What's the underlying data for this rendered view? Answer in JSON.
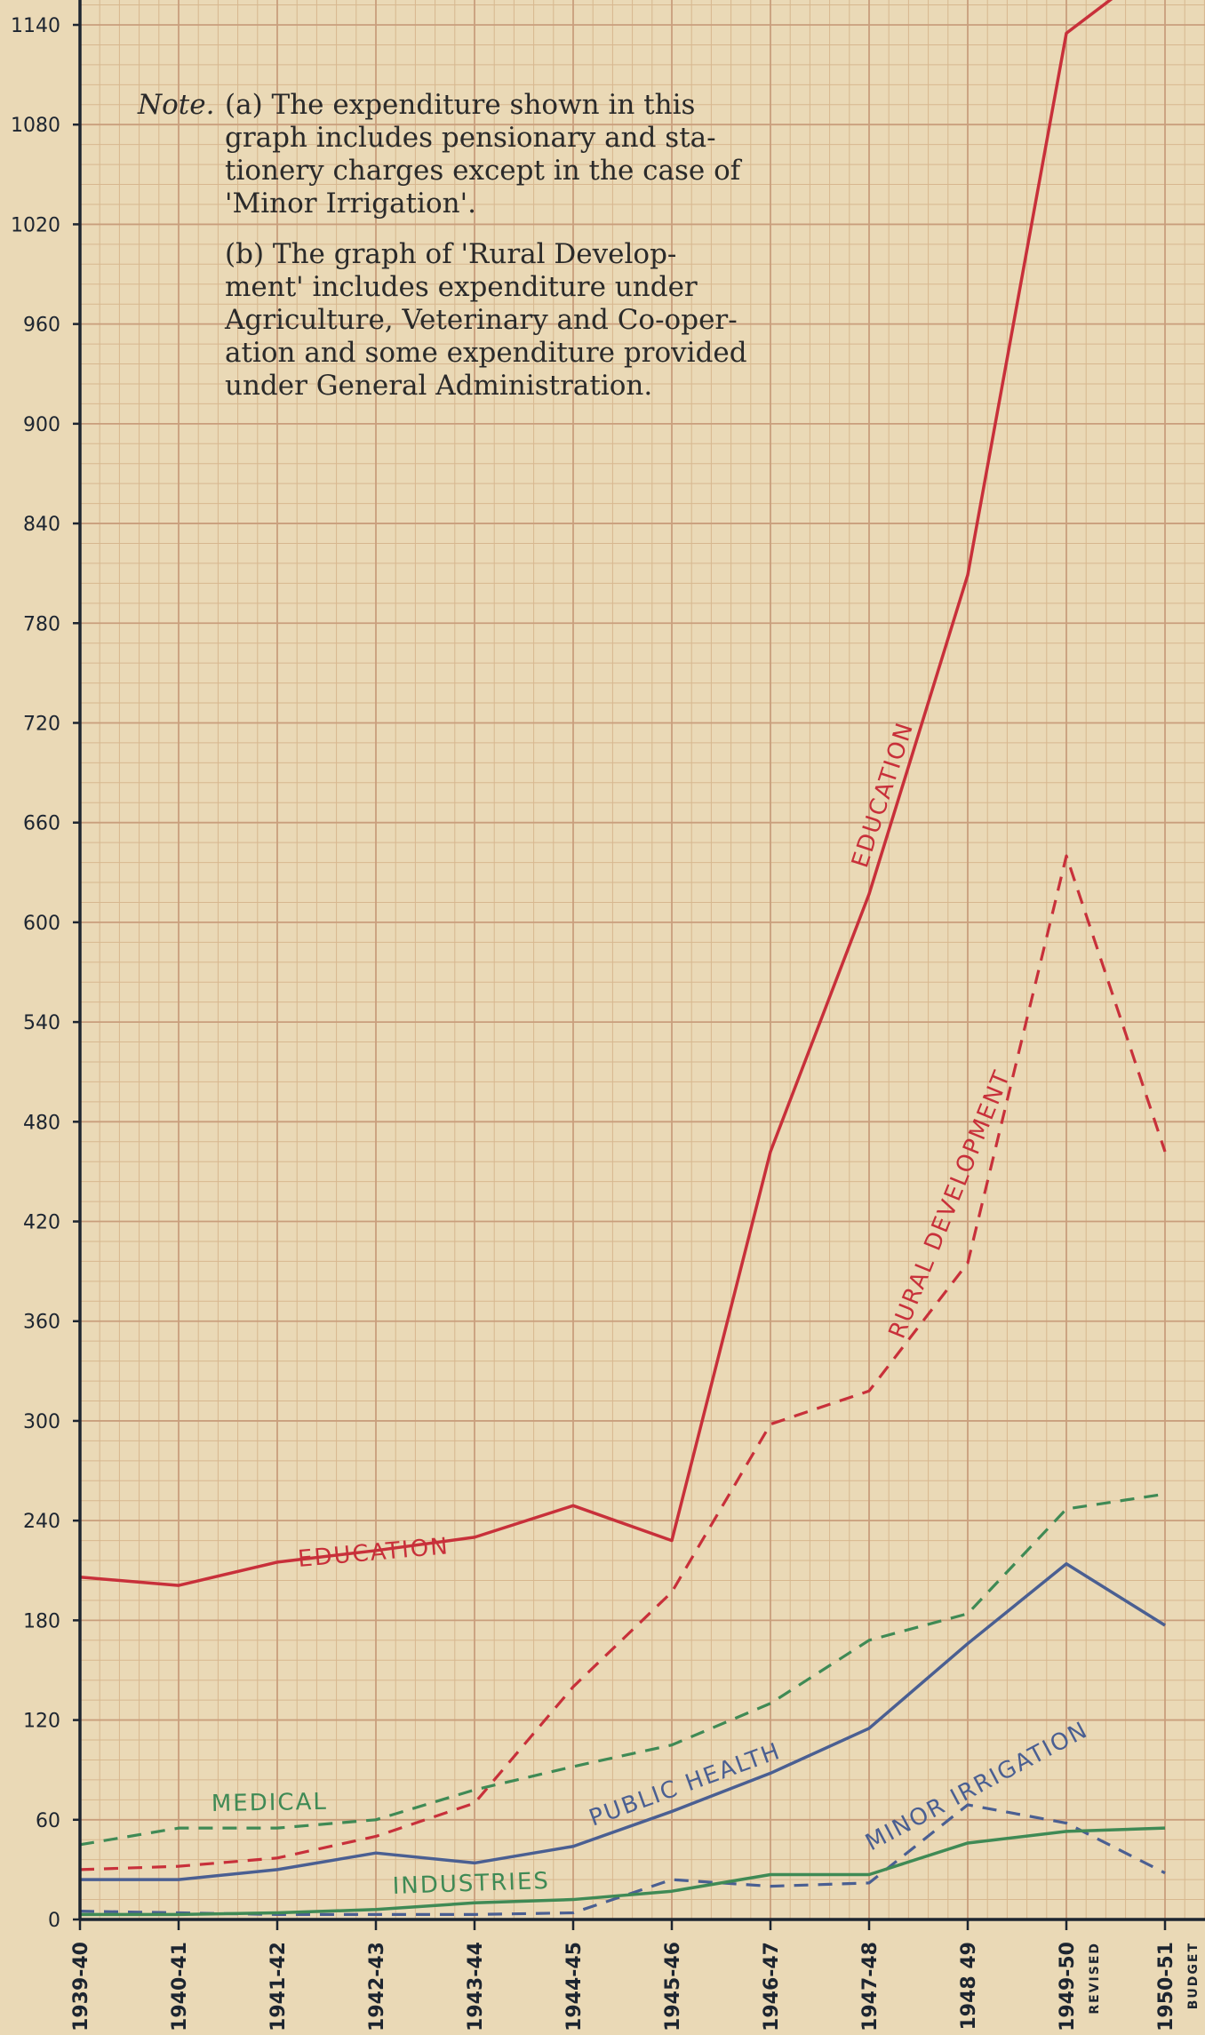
{
  "note": {
    "heading": "Note.",
    "a_lines": [
      "(a) The expenditure shown in this",
      "graph includes pensionary  and sta-",
      "tionery charges except in the case of",
      "'Minor Irrigation'."
    ],
    "b_lines": [
      "(b) The graph of 'Rural Develop-",
      "ment' includes expenditure under",
      "Agriculture, Veterinary and Co-oper-",
      "ation and some expenditure provided",
      "under General Administration."
    ]
  },
  "colors": {
    "red": "#c8303a",
    "green": "#3f8a55",
    "blue": "#4a5f92",
    "axis": "#1d2530",
    "grid_minor": "#d7b78f",
    "grid_major": "#c99e7c"
  },
  "chart_data": {
    "type": "line",
    "title": "",
    "xlabel": "",
    "ylabel": "",
    "ylim": [
      0,
      1140
    ],
    "yticks": [
      0,
      60,
      120,
      180,
      240,
      300,
      360,
      420,
      480,
      540,
      600,
      660,
      720,
      780,
      840,
      900,
      960,
      1020,
      1080,
      1140
    ],
    "categories": [
      "1939-40",
      "1940-41",
      "1941-42",
      "1942-43",
      "1943-44",
      "1944-45",
      "1945-46",
      "1946-47",
      "1947-48",
      "1948 49",
      "1949-50",
      "1950-51"
    ],
    "category_sublabels": [
      "",
      "",
      "",
      "",
      "",
      "",
      "",
      "",
      "",
      "",
      "REVISED",
      "BUDGET"
    ],
    "grid": true,
    "series": [
      {
        "name": "EDUCATION",
        "style": "solid",
        "color": "red",
        "values": [
          206,
          201,
          215,
          222,
          230,
          249,
          228,
          462,
          617,
          809,
          1135,
          1180
        ]
      },
      {
        "name": "RURAL DEVELOPMENT",
        "style": "dashed",
        "color": "red",
        "values": [
          30,
          32,
          37,
          50,
          70,
          140,
          197,
          298,
          318,
          395,
          640,
          462
        ]
      },
      {
        "name": "MEDICAL",
        "style": "dashed",
        "color": "green",
        "values": [
          45,
          55,
          55,
          60,
          78,
          92,
          105,
          130,
          168,
          184,
          247,
          256
        ]
      },
      {
        "name": "PUBLIC HEALTH",
        "style": "solid",
        "color": "blue",
        "values": [
          24,
          24,
          30,
          40,
          34,
          44,
          65,
          88,
          115,
          166,
          214,
          177
        ]
      },
      {
        "name": "MINOR IRRIGATION",
        "style": "dashed",
        "color": "blue",
        "values": [
          5,
          4,
          3,
          3,
          3,
          4,
          24,
          20,
          22,
          69,
          58,
          28
        ]
      },
      {
        "name": "INDUSTRIES",
        "style": "solid",
        "color": "green",
        "values": [
          3,
          3,
          4,
          6,
          10,
          12,
          17,
          27,
          27,
          46,
          53,
          55
        ]
      }
    ],
    "annotations": [
      "EDUCATION",
      "EDUCATION",
      "RURAL DEVELOPMENT",
      "MEDICAL",
      "PUBLIC HEALTH",
      "MINOR IRRIGATION",
      "INDUSTRIES"
    ]
  }
}
